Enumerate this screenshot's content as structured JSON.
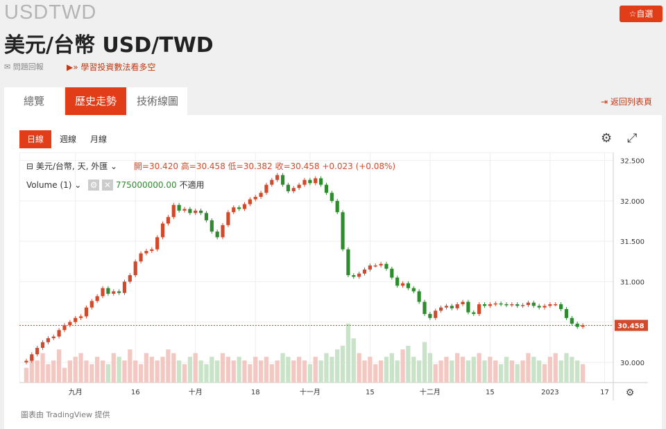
{
  "header": {
    "symbol": "USDTWD",
    "title": "美元/台幣 USD/TWD",
    "favorite_label": "☆自選",
    "report_label": "問題回報",
    "learn_label": "學習投資數法看多空"
  },
  "tabs": [
    {
      "label": "總覽",
      "active": false
    },
    {
      "label": "歷史走勢",
      "active": true
    },
    {
      "label": "技術線圖",
      "active": false
    }
  ],
  "back_label": "返回列表頁",
  "ranges": [
    {
      "label": "日線",
      "active": true
    },
    {
      "label": "週線",
      "active": false
    },
    {
      "label": "月線",
      "active": false
    }
  ],
  "legend": {
    "name": "美元/台幣, 天, 外匯",
    "ohlc": "開=30.420  高=30.458  低=30.382  收=30.458  +0.023 (+0.08%)",
    "volume_label": "Volume (1)",
    "volume_value": "775000000.00",
    "volume_na": "不適用"
  },
  "credit": "圖表由 TradingView 提供",
  "colors": {
    "up": "#d24a2c",
    "down": "#2e8b2e",
    "accent": "#e03d18"
  },
  "chart_data": {
    "type": "candlestick",
    "ylim": [
      29.75,
      32.6
    ],
    "y_ticks": [
      30.0,
      30.5,
      31.0,
      31.5,
      32.0,
      32.5
    ],
    "y_tick_labels": [
      "30.000",
      "30.500",
      "31.000",
      "31.500",
      "32.000",
      "32.500"
    ],
    "x_tick_labels": [
      "九月",
      "16",
      "十月",
      "18",
      "十一月",
      "15",
      "十二月",
      "15",
      "2023",
      "17"
    ],
    "x_tick_index": [
      9,
      20,
      31,
      42,
      52,
      63,
      74,
      85,
      96,
      106
    ],
    "last_price": 30.458,
    "last_price_label": "30.458",
    "close": [
      30.02,
      30.1,
      30.18,
      30.25,
      30.3,
      30.32,
      30.4,
      30.46,
      30.5,
      30.55,
      30.57,
      30.68,
      30.76,
      30.82,
      30.92,
      30.85,
      30.88,
      30.86,
      31.0,
      31.08,
      31.25,
      31.35,
      31.38,
      31.4,
      31.55,
      31.72,
      31.8,
      31.95,
      31.88,
      31.9,
      31.85,
      31.88,
      31.85,
      31.76,
      31.62,
      31.55,
      31.7,
      31.86,
      31.92,
      31.9,
      31.96,
      32.02,
      32.05,
      32.1,
      32.2,
      32.26,
      32.32,
      32.2,
      32.12,
      32.16,
      32.2,
      32.26,
      32.22,
      32.28,
      32.2,
      32.1,
      32.0,
      31.86,
      31.4,
      31.08,
      31.06,
      31.1,
      31.15,
      31.2,
      31.2,
      31.22,
      31.16,
      31.05,
      30.95,
      30.98,
      30.92,
      30.88,
      30.75,
      30.6,
      30.55,
      30.64,
      30.68,
      30.7,
      30.67,
      30.72,
      30.75,
      30.62,
      30.6,
      30.72,
      30.7,
      30.72,
      30.73,
      30.72,
      30.71,
      30.72,
      30.7,
      30.71,
      30.74,
      30.7,
      30.68,
      30.7,
      30.72,
      30.72,
      30.66,
      30.55,
      30.48,
      30.44,
      30.46
    ],
    "volume": [
      4,
      7,
      6,
      8,
      5,
      6,
      9,
      4,
      6,
      7,
      8,
      6,
      5,
      7,
      6,
      5,
      8,
      7,
      6,
      9,
      6,
      5,
      8,
      7,
      6,
      7,
      9,
      8,
      6,
      5,
      7,
      8,
      6,
      5,
      7,
      6,
      8,
      7,
      6,
      7,
      6,
      5,
      7,
      6,
      7,
      5,
      6,
      8,
      7,
      6,
      7,
      6,
      5,
      7,
      6,
      8,
      7,
      9,
      10,
      16,
      12,
      8,
      6,
      7,
      5,
      6,
      7,
      8,
      6,
      9,
      10,
      7,
      6,
      11,
      8,
      5,
      6,
      7,
      6,
      8,
      7,
      6,
      7,
      8,
      6,
      7,
      6,
      5,
      7,
      6,
      5,
      6,
      8,
      7,
      6,
      5,
      7,
      8,
      6,
      8,
      7,
      6,
      5
    ]
  }
}
